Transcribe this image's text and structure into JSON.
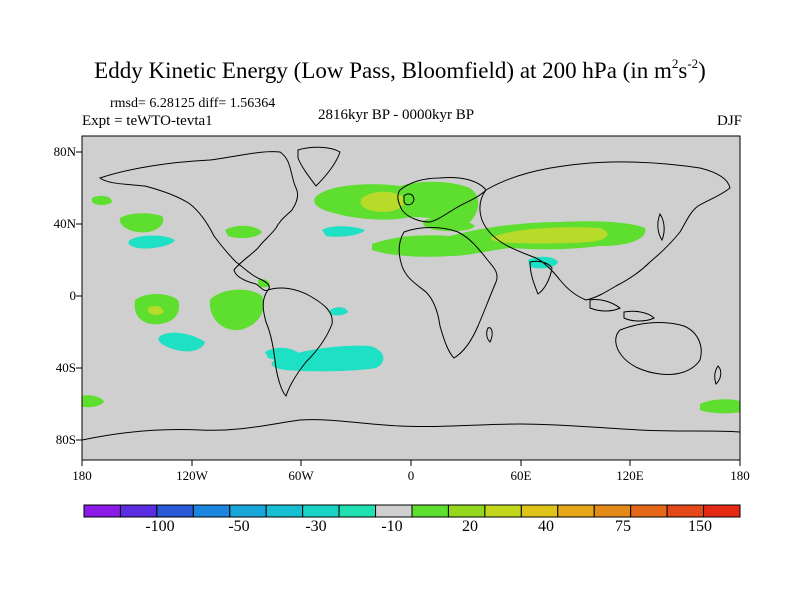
{
  "title": {
    "main": "Eddy Kinetic Energy (Low Pass, Bloomfield) at 200 hPa (in m",
    "sup1": "2",
    "s": "s",
    "sup2": "-2",
    "close": ")"
  },
  "stats": "rmsd= 6.28125 diff= 1.56364",
  "experiment": "Expt = teWTO-tevta1",
  "period": "2816kyr BP - 0000kyr BP",
  "season": "DJF",
  "axes": {
    "lat_labels": [
      "80N",
      "40N",
      "0",
      "40S",
      "80S"
    ],
    "lon_labels": [
      "180",
      "120W",
      "60W",
      "0",
      "60E",
      "120E",
      "180"
    ]
  },
  "colorbar": {
    "labels": [
      "-100",
      "-50",
      "-30",
      "-10",
      "20",
      "40",
      "75",
      "150"
    ],
    "colors": [
      "#8b1ae6",
      "#5a2ee0",
      "#2a5ad8",
      "#1a86de",
      "#18a6d8",
      "#17bfd2",
      "#19d3c4",
      "#1ee0b0",
      "#cfcfcf",
      "#5ede2e",
      "#94d81e",
      "#c2d61a",
      "#dec418",
      "#e4a818",
      "#e48a18",
      "#e46818",
      "#e44818",
      "#e42a14"
    ]
  },
  "colors": {
    "land_bg": "#cfcfcf",
    "pos_low": "#5ede2e",
    "pos_mid": "#b8da2a",
    "neg_low": "#1ee0c4"
  }
}
